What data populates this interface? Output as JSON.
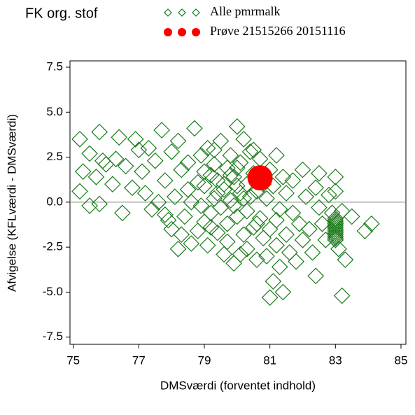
{
  "chart_data": {
    "type": "scatter",
    "title": "FK org. stof",
    "xlabel": "DMSværdi (forventet indhold)",
    "ylabel": "Afvigelse (KFLværdi - DMSværdi)",
    "xlim": [
      74.9,
      85.15
    ],
    "ylim": [
      -7.9,
      7.85
    ],
    "xticks": [
      75,
      77,
      79,
      81,
      83,
      85
    ],
    "yticks": [
      7.5,
      {
        "value": 5,
        "label": "5.0"
      },
      2.5,
      {
        "value": 0,
        "label": "0.0"
      },
      -2.5,
      {
        "value": -5,
        "label": "-5.0"
      },
      -7.5
    ],
    "reference_line_y": 0,
    "series": [
      {
        "name": "Alle pmrmalk",
        "color": "#1a7a1a",
        "marker": "diamond",
        "x": [
          75.2,
          75.3,
          75.2,
          75.5,
          75.8,
          75.5,
          75.8,
          75.9,
          76.0,
          75.7,
          76.2,
          76.3,
          76.4,
          76.6,
          76.5,
          76.8,
          76.9,
          77.0,
          77.1,
          77.2,
          77.3,
          77.4,
          77.5,
          77.6,
          77.7,
          77.8,
          77.9,
          78.0,
          78.0,
          78.1,
          78.2,
          78.3,
          78.3,
          78.4,
          78.5,
          78.5,
          78.6,
          78.7,
          78.8,
          78.9,
          78.9,
          79.0,
          79.0,
          79.1,
          79.1,
          79.2,
          79.2,
          79.3,
          79.3,
          79.4,
          79.4,
          79.5,
          79.5,
          79.6,
          79.6,
          79.7,
          79.7,
          79.8,
          79.8,
          79.9,
          79.9,
          80.0,
          80.0,
          80.1,
          80.1,
          80.2,
          80.2,
          80.3,
          80.3,
          80.4,
          80.4,
          80.5,
          80.5,
          80.6,
          80.6,
          80.7,
          80.7,
          80.8,
          80.8,
          80.9,
          80.9,
          81.0,
          81.0,
          81.0,
          81.1,
          81.1,
          81.2,
          81.2,
          81.3,
          81.3,
          81.4,
          81.4,
          81.5,
          81.5,
          81.6,
          81.7,
          81.7,
          81.8,
          81.9,
          82.0,
          82.0,
          82.1,
          82.2,
          82.3,
          82.4,
          82.4,
          82.5,
          82.5,
          82.6,
          82.7,
          82.8,
          82.9,
          83.0,
          83.0,
          83.1,
          83.2,
          83.2,
          83.3,
          83.5,
          83.9,
          84.1,
          79.6,
          79.8,
          80.0,
          80.2,
          79.4,
          79.9,
          80.3,
          79.2,
          80.6,
          78.8,
          79.0,
          80.5,
          78.6,
          77.8,
          78.2,
          79.7,
          80.1,
          81.2,
          80.0,
          79.3,
          83.0,
          83.0,
          83.0,
          83.0,
          83.0,
          83.0,
          83.0,
          83.0,
          83.0,
          83.0,
          83.0,
          83.0,
          83.0
        ],
        "y": [
          3.5,
          1.7,
          0.6,
          -0.2,
          -0.1,
          2.7,
          3.9,
          2.3,
          2.1,
          1.4,
          1.0,
          2.4,
          3.6,
          2.0,
          -0.6,
          0.8,
          3.5,
          2.9,
          1.7,
          0.5,
          3.0,
          -0.4,
          2.3,
          0.0,
          4.0,
          1.2,
          -1.0,
          2.8,
          -1.5,
          0.3,
          3.4,
          -1.8,
          1.8,
          -0.8,
          2.2,
          0.7,
          -2.3,
          4.1,
          1.1,
          -0.2,
          2.6,
          -1.1,
          0.9,
          3.0,
          -2.4,
          1.5,
          -0.6,
          2.1,
          0.2,
          -1.7,
          1.2,
          3.4,
          -0.3,
          0.7,
          -2.9,
          1.9,
          -1.2,
          2.6,
          0.1,
          -3.4,
          1.4,
          4.2,
          -0.8,
          2.2,
          0.5,
          -1.8,
          3.5,
          1.0,
          -2.6,
          0.3,
          2.8,
          -1.4,
          1.6,
          -3.2,
          0.6,
          2.4,
          -0.9,
          -2.0,
          1.0,
          -3.0,
          0.2,
          1.8,
          -5.3,
          -1.5,
          -4.4,
          0.9,
          2.6,
          -2.4,
          -0.4,
          -3.6,
          1.4,
          -5.0,
          -1.8,
          0.5,
          -2.8,
          1.2,
          -0.6,
          -3.3,
          -1.2,
          1.8,
          -2.1,
          0.3,
          -1.5,
          -2.8,
          0.8,
          -4.1,
          -0.3,
          1.6,
          -1.2,
          -2.1,
          0.4,
          -0.6,
          1.4,
          0.6,
          -2.6,
          -0.5,
          -5.2,
          -3.2,
          -0.8,
          -1.6,
          -1.2,
          1.0,
          1.5,
          0.9,
          0.2,
          0.5,
          -0.2,
          -0.5,
          -1.4,
          -1.2,
          -1.6,
          1.7,
          2.9,
          0.0,
          -0.7,
          -2.6,
          -2.2,
          -2.9,
          -1.0,
          1.9,
          2.9,
          -0.9,
          -1.0,
          -1.1,
          -1.2,
          -1.3,
          -1.4,
          -1.5,
          -1.6,
          -1.7,
          -1.8,
          -1.9,
          -2.0,
          -2.1
        ]
      },
      {
        "name": "Prøve 21515266 20151116",
        "color": "#ff0000",
        "marker": "circle",
        "x": [
          80.7
        ],
        "y": [
          1.35
        ]
      }
    ]
  }
}
